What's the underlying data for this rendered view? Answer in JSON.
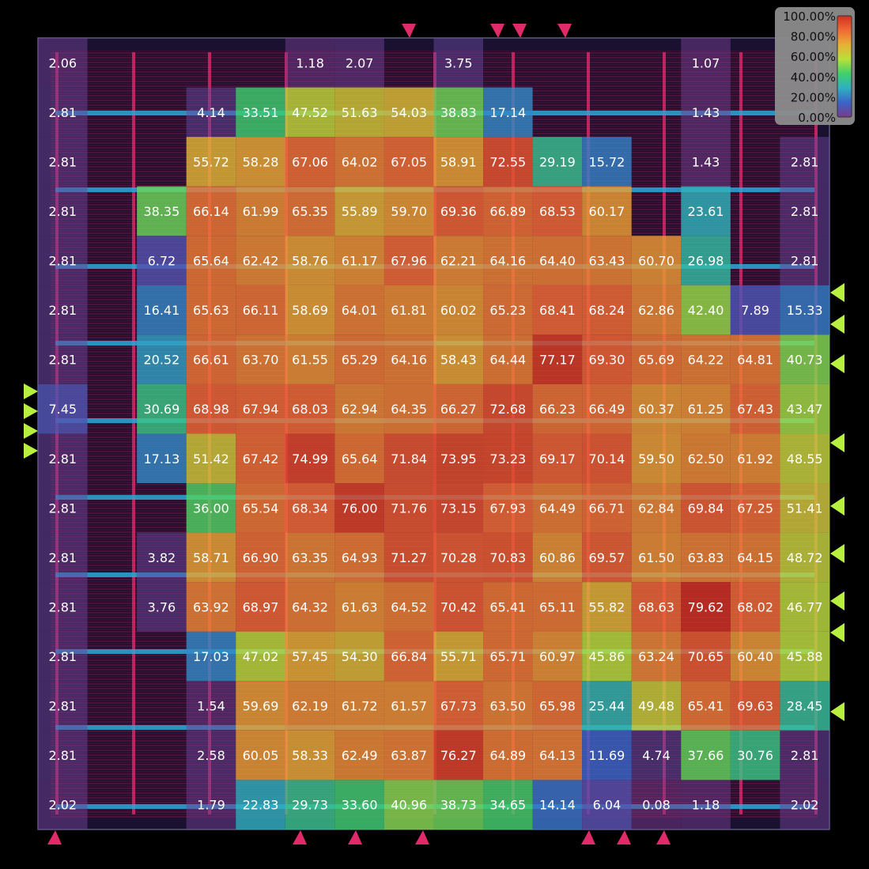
{
  "chart_data": {
    "type": "heatmap",
    "title": "",
    "xlabel": "",
    "ylabel": "",
    "unit": "%",
    "colorscale": {
      "min": 0,
      "max": 100,
      "ticks": [
        "100.00%",
        "80.00%",
        "60.00%",
        "40.00%",
        "20.00%",
        "0.00%"
      ],
      "stops": [
        "#7a3a8a",
        "#3a63c8",
        "#2fb0c0",
        "#3fcf6a",
        "#b8e03a",
        "#e8b035",
        "#f06a35",
        "#d03020"
      ]
    },
    "rows": 16,
    "cols": 16,
    "values": [
      [
        2.06,
        null,
        null,
        null,
        null,
        1.18,
        2.07,
        null,
        3.75,
        null,
        null,
        null,
        null,
        1.07,
        null,
        null
      ],
      [
        2.81,
        null,
        null,
        4.14,
        33.51,
        47.52,
        51.63,
        54.03,
        38.83,
        17.14,
        null,
        null,
        null,
        1.43,
        null,
        null
      ],
      [
        2.81,
        null,
        null,
        55.72,
        58.28,
        67.06,
        64.02,
        67.05,
        58.91,
        72.55,
        29.19,
        15.72,
        null,
        1.43,
        null,
        2.81
      ],
      [
        2.81,
        null,
        38.35,
        66.14,
        61.99,
        65.35,
        55.89,
        59.7,
        69.36,
        66.89,
        68.53,
        60.17,
        null,
        23.61,
        null,
        2.81
      ],
      [
        2.81,
        null,
        6.72,
        65.64,
        62.42,
        58.76,
        61.17,
        67.96,
        62.21,
        64.16,
        64.4,
        63.43,
        60.7,
        26.98,
        null,
        2.81
      ],
      [
        2.81,
        null,
        16.41,
        65.63,
        66.11,
        58.69,
        64.01,
        61.81,
        60.02,
        65.23,
        68.41,
        68.24,
        62.86,
        42.4,
        7.89,
        15.33
      ],
      [
        2.81,
        null,
        20.52,
        66.61,
        63.7,
        61.55,
        65.29,
        64.16,
        58.43,
        64.44,
        77.17,
        69.3,
        65.69,
        64.22,
        64.81,
        40.73
      ],
      [
        7.45,
        null,
        30.69,
        68.98,
        67.94,
        68.03,
        62.94,
        64.35,
        66.27,
        72.68,
        66.23,
        66.49,
        60.37,
        61.25,
        67.43,
        43.47
      ],
      [
        2.81,
        null,
        17.13,
        51.42,
        67.42,
        74.99,
        65.64,
        71.84,
        73.95,
        73.23,
        69.17,
        70.14,
        59.5,
        62.5,
        61.92,
        48.55
      ],
      [
        2.81,
        null,
        null,
        36.0,
        65.54,
        68.34,
        76.0,
        71.76,
        73.15,
        67.93,
        64.49,
        66.71,
        62.84,
        69.84,
        67.25,
        51.41
      ],
      [
        2.81,
        null,
        3.82,
        58.71,
        66.9,
        63.35,
        64.93,
        71.27,
        70.28,
        70.83,
        60.86,
        69.57,
        61.5,
        63.83,
        64.15,
        48.72
      ],
      [
        2.81,
        null,
        3.76,
        63.92,
        68.97,
        64.32,
        61.63,
        64.52,
        70.42,
        65.41,
        65.11,
        55.82,
        68.63,
        79.62,
        68.02,
        46.77
      ],
      [
        2.81,
        null,
        null,
        17.03,
        47.02,
        57.45,
        54.3,
        66.84,
        55.71,
        65.71,
        60.97,
        45.86,
        63.24,
        70.65,
        60.4,
        45.88
      ],
      [
        2.81,
        null,
        null,
        1.54,
        59.69,
        62.19,
        61.72,
        61.57,
        67.73,
        63.5,
        65.98,
        25.44,
        49.48,
        65.41,
        69.63,
        28.45
      ],
      [
        2.81,
        null,
        null,
        2.58,
        60.05,
        58.33,
        62.49,
        63.87,
        76.27,
        64.89,
        64.13,
        11.69,
        4.74,
        37.66,
        30.76,
        2.81
      ],
      [
        2.02,
        null,
        null,
        1.79,
        22.83,
        29.73,
        33.6,
        40.96,
        38.73,
        34.65,
        14.14,
        6.04,
        0.08,
        1.18,
        null,
        2.02
      ]
    ]
  }
}
